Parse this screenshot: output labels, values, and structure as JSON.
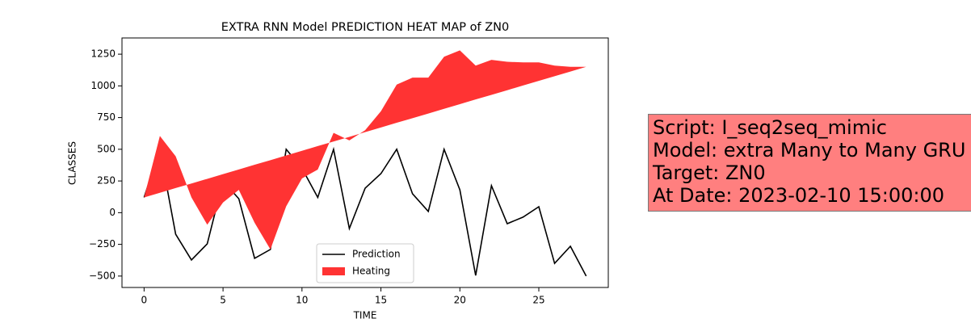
{
  "chart_data": {
    "type": "line-fill",
    "title": "EXTRA RNN Model PREDICTION HEAT MAP of ZN0",
    "xlabel": "TIME",
    "ylabel": "CLASSES",
    "x": [
      0,
      1,
      2,
      3,
      4,
      5,
      6,
      7,
      8,
      9,
      10,
      11,
      12,
      13,
      14,
      15,
      16,
      17,
      18,
      19,
      20,
      21,
      22,
      23,
      24,
      25,
      26,
      27,
      28
    ],
    "series": [
      {
        "name": "Prediction",
        "color": "#000000",
        "values": [
          120,
          500,
          -170,
          -373,
          -246,
          250,
          110,
          -360,
          -290,
          500,
          350,
          120,
          500,
          -125,
          193,
          308,
          500,
          149,
          10,
          500,
          180,
          -495,
          213,
          -87,
          -35,
          47,
          -400,
          -265,
          -500
        ]
      },
      {
        "name": "Heating",
        "color": "#ff3333",
        "fill": true,
        "y1": [
          120,
          157,
          194,
          230,
          267,
          304,
          341,
          378,
          414,
          451,
          488,
          525,
          561,
          598,
          635,
          672,
          709,
          745,
          782,
          819,
          856,
          893,
          929,
          966,
          1003,
          1040,
          1076,
          1113,
          1150
        ],
        "y2": [
          120,
          605,
          445,
          120,
          -95,
          80,
          180,
          -80,
          -290,
          50,
          270,
          340,
          630,
          570,
          650,
          800,
          1010,
          1065,
          1065,
          1230,
          1280,
          1160,
          1205,
          1190,
          1185,
          1185,
          1160,
          1150,
          1150
        ]
      }
    ],
    "xlim": [
      -1.4,
      29.4
    ],
    "ylim": [
      -590,
      1378
    ],
    "xticks": [
      0,
      5,
      10,
      15,
      20,
      25
    ],
    "yticks": [
      {
        "value": -500,
        "label": "−500"
      },
      {
        "value": -250,
        "label": "−250"
      },
      0,
      250,
      500,
      750,
      1000,
      1250
    ],
    "legend": "lower center",
    "annotation_lines": [
      "Script: I_seq2seq_mimic",
      "Model: extra Many to Many GRU",
      "Target: ZN0",
      "At Date: 2023-02-10 15:00:00"
    ],
    "annotation_color": "#ff7f7f"
  }
}
